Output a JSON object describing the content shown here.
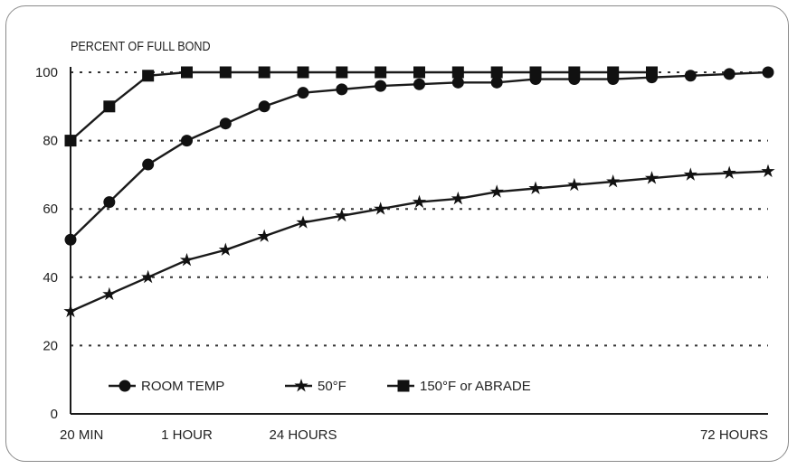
{
  "chart_data": {
    "type": "line",
    "ylabel": "PERCENT OF FULL BOND",
    "ylim": [
      0,
      100
    ],
    "yticks": [
      0,
      20,
      40,
      60,
      80,
      100
    ],
    "x_tick_labels": [
      {
        "x": 0,
        "label": "20 MIN"
      },
      {
        "x": 3,
        "label": "1 HOUR"
      },
      {
        "x": 6,
        "label": "24 HOURS"
      },
      {
        "x": 18,
        "label": "72 HOURS"
      }
    ],
    "xlim": [
      0,
      18
    ],
    "grid": "horizontal dotted",
    "legend_placement": "lower-left",
    "series": [
      {
        "name": "ROOM TEMP",
        "marker": "circle",
        "x": [
          0,
          1,
          2,
          3,
          4,
          5,
          6,
          7,
          8,
          9,
          10,
          11,
          12,
          13,
          14,
          15,
          16,
          17,
          18
        ],
        "values": [
          51,
          62,
          73,
          80,
          85,
          90,
          94,
          95,
          96,
          96.5,
          97,
          97,
          98,
          98,
          98,
          98.5,
          99,
          99.5,
          100
        ]
      },
      {
        "name": "50°F",
        "marker": "star",
        "x": [
          0,
          1,
          2,
          3,
          4,
          5,
          6,
          7,
          8,
          9,
          10,
          11,
          12,
          13,
          14,
          15,
          16,
          17,
          18
        ],
        "values": [
          30,
          35,
          40,
          45,
          48,
          52,
          56,
          58,
          60,
          62,
          63,
          65,
          66,
          67,
          68,
          69,
          70,
          70.5,
          71
        ]
      },
      {
        "name": "150°F or ABRADE",
        "marker": "square",
        "x": [
          0,
          1,
          2,
          3,
          4,
          5,
          6,
          7,
          8,
          9,
          10,
          11,
          12,
          13,
          14,
          15
        ],
        "values": [
          80,
          90,
          99,
          100,
          100,
          100,
          100,
          100,
          100,
          100,
          100,
          100,
          100,
          100,
          100,
          100
        ]
      }
    ]
  }
}
